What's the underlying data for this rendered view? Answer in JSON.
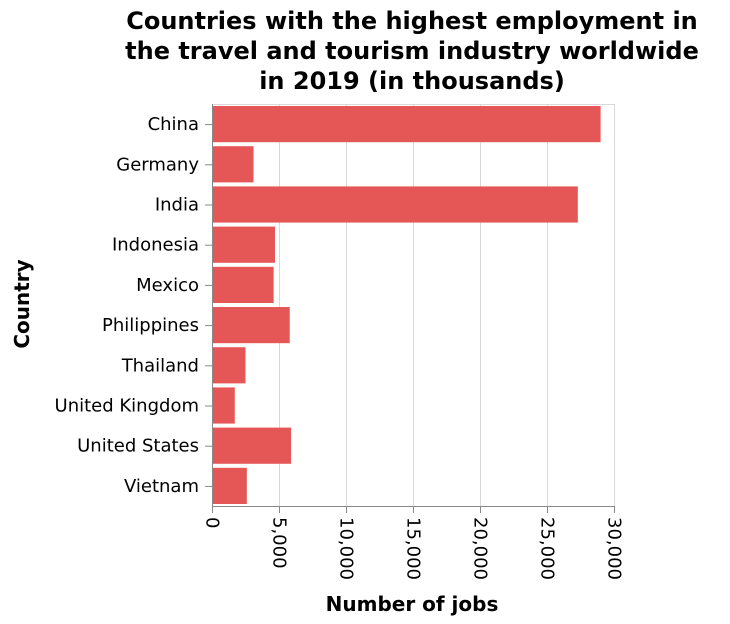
{
  "chart_data": {
    "type": "bar",
    "orientation": "horizontal",
    "title_lines": [
      "Countries with the highest employment in",
      "the travel and tourism industry worldwide",
      "in 2019 (in thousands)"
    ],
    "xlabel": "Number of jobs",
    "ylabel": "Country",
    "categories": [
      "China",
      "Germany",
      "India",
      "Indonesia",
      "Mexico",
      "Philippines",
      "Thailand",
      "United Kingdom",
      "United States",
      "Vietnam"
    ],
    "values": [
      29000,
      3100,
      27300,
      4700,
      4600,
      5800,
      2500,
      1700,
      5900,
      2600
    ],
    "xlim": [
      0,
      30000
    ],
    "xticks": [
      0,
      5000,
      10000,
      15000,
      20000,
      25000,
      30000
    ],
    "xtick_labels": [
      "0",
      "5,000",
      "10,000",
      "15,000",
      "20,000",
      "25,000",
      "30,000"
    ],
    "grid": "vertical",
    "bar_color": "#e45756"
  }
}
